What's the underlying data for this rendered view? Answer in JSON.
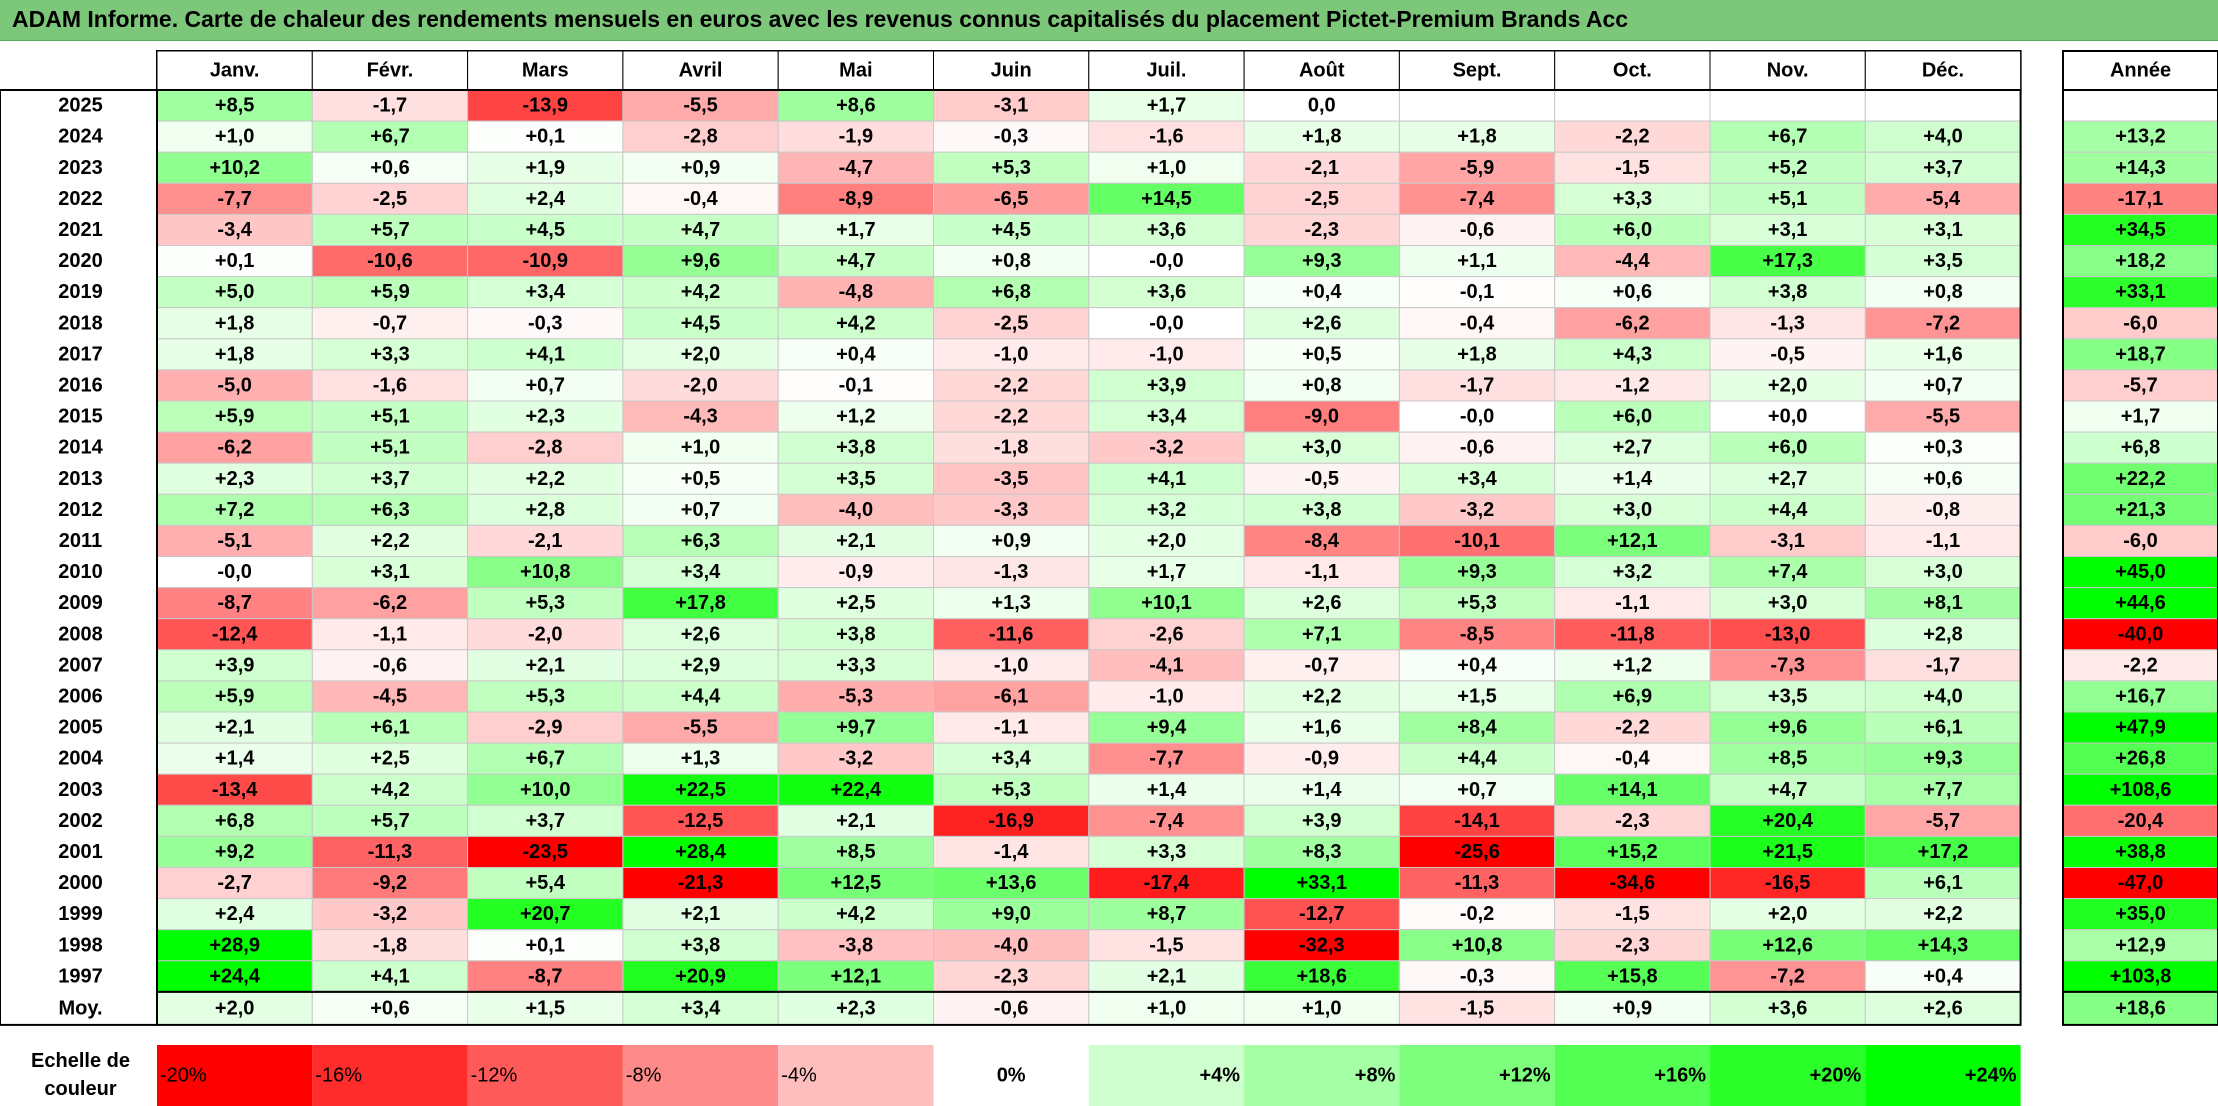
{
  "title": "ADAM Informe. Carte de chaleur des rendements mensuels en euros avec les revenus connus capitalisés du placement Pictet-Premium Brands Acc",
  "chart_data": {
    "type": "heatmap",
    "months": [
      "Janv.",
      "Févr.",
      "Mars",
      "Avril",
      "Mai",
      "Juin",
      "Juil.",
      "Août",
      "Sept.",
      "Oct.",
      "Nov.",
      "Déc."
    ],
    "annual_header": "Année",
    "rows": [
      {
        "year": "2025",
        "values": [
          "+8,5",
          "-1,7",
          "-13,9",
          "-5,5",
          "+8,6",
          "-3,1",
          "+1,7",
          "0,0",
          "",
          "",
          "",
          ""
        ],
        "annual": ""
      },
      {
        "year": "2024",
        "values": [
          "+1,0",
          "+6,7",
          "+0,1",
          "-2,8",
          "-1,9",
          "-0,3",
          "-1,6",
          "+1,8",
          "+1,8",
          "-2,2",
          "+6,7",
          "+4,0"
        ],
        "annual": "+13,2"
      },
      {
        "year": "2023",
        "values": [
          "+10,2",
          "+0,6",
          "+1,9",
          "+0,9",
          "-4,7",
          "+5,3",
          "+1,0",
          "-2,1",
          "-5,9",
          "-1,5",
          "+5,2",
          "+3,7"
        ],
        "annual": "+14,3"
      },
      {
        "year": "2022",
        "values": [
          "-7,7",
          "-2,5",
          "+2,4",
          "-0,4",
          "-8,9",
          "-6,5",
          "+14,5",
          "-2,5",
          "-7,4",
          "+3,3",
          "+5,1",
          "-5,4"
        ],
        "annual": "-17,1"
      },
      {
        "year": "2021",
        "values": [
          "-3,4",
          "+5,7",
          "+4,5",
          "+4,7",
          "+1,7",
          "+4,5",
          "+3,6",
          "-2,3",
          "-0,6",
          "+6,0",
          "+3,1",
          "+3,1"
        ],
        "annual": "+34,5"
      },
      {
        "year": "2020",
        "values": [
          "+0,1",
          "-10,6",
          "-10,9",
          "+9,6",
          "+4,7",
          "+0,8",
          "-0,0",
          "+9,3",
          "+1,1",
          "-4,4",
          "+17,3",
          "+3,5"
        ],
        "annual": "+18,2"
      },
      {
        "year": "2019",
        "values": [
          "+5,0",
          "+5,9",
          "+3,4",
          "+4,2",
          "-4,8",
          "+6,8",
          "+3,6",
          "+0,4",
          "-0,1",
          "+0,6",
          "+3,8",
          "+0,8"
        ],
        "annual": "+33,1"
      },
      {
        "year": "2018",
        "values": [
          "+1,8",
          "-0,7",
          "-0,3",
          "+4,5",
          "+4,2",
          "-2,5",
          "-0,0",
          "+2,6",
          "-0,4",
          "-6,2",
          "-1,3",
          "-7,2"
        ],
        "annual": "-6,0"
      },
      {
        "year": "2017",
        "values": [
          "+1,8",
          "+3,3",
          "+4,1",
          "+2,0",
          "+0,4",
          "-1,0",
          "-1,0",
          "+0,5",
          "+1,8",
          "+4,3",
          "-0,5",
          "+1,6"
        ],
        "annual": "+18,7"
      },
      {
        "year": "2016",
        "values": [
          "-5,0",
          "-1,6",
          "+0,7",
          "-2,0",
          "-0,1",
          "-2,2",
          "+3,9",
          "+0,8",
          "-1,7",
          "-1,2",
          "+2,0",
          "+0,7"
        ],
        "annual": "-5,7"
      },
      {
        "year": "2015",
        "values": [
          "+5,9",
          "+5,1",
          "+2,3",
          "-4,3",
          "+1,2",
          "-2,2",
          "+3,4",
          "-9,0",
          "-0,0",
          "+6,0",
          "+0,0",
          "-5,5"
        ],
        "annual": "+1,7"
      },
      {
        "year": "2014",
        "values": [
          "-6,2",
          "+5,1",
          "-2,8",
          "+1,0",
          "+3,8",
          "-1,8",
          "-3,2",
          "+3,0",
          "-0,6",
          "+2,7",
          "+6,0",
          "+0,3"
        ],
        "annual": "+6,8"
      },
      {
        "year": "2013",
        "values": [
          "+2,3",
          "+3,7",
          "+2,2",
          "+0,5",
          "+3,5",
          "-3,5",
          "+4,1",
          "-0,5",
          "+3,4",
          "+1,4",
          "+2,7",
          "+0,6"
        ],
        "annual": "+22,2"
      },
      {
        "year": "2012",
        "values": [
          "+7,2",
          "+6,3",
          "+2,8",
          "+0,7",
          "-4,0",
          "-3,3",
          "+3,2",
          "+3,8",
          "-3,2",
          "+3,0",
          "+4,4",
          "-0,8"
        ],
        "annual": "+21,3"
      },
      {
        "year": "2011",
        "values": [
          "-5,1",
          "+2,2",
          "-2,1",
          "+6,3",
          "+2,1",
          "+0,9",
          "+2,0",
          "-8,4",
          "-10,1",
          "+12,1",
          "-3,1",
          "-1,1"
        ],
        "annual": "-6,0"
      },
      {
        "year": "2010",
        "values": [
          "-0,0",
          "+3,1",
          "+10,8",
          "+3,4",
          "-0,9",
          "-1,3",
          "+1,7",
          "-1,1",
          "+9,3",
          "+3,2",
          "+7,4",
          "+3,0"
        ],
        "annual": "+45,0"
      },
      {
        "year": "2009",
        "values": [
          "-8,7",
          "-6,2",
          "+5,3",
          "+17,8",
          "+2,5",
          "+1,3",
          "+10,1",
          "+2,6",
          "+5,3",
          "-1,1",
          "+3,0",
          "+8,1"
        ],
        "annual": "+44,6"
      },
      {
        "year": "2008",
        "values": [
          "-12,4",
          "-1,1",
          "-2,0",
          "+2,6",
          "+3,8",
          "-11,6",
          "-2,6",
          "+7,1",
          "-8,5",
          "-11,8",
          "-13,0",
          "+2,8"
        ],
        "annual": "-40,0"
      },
      {
        "year": "2007",
        "values": [
          "+3,9",
          "-0,6",
          "+2,1",
          "+2,9",
          "+3,3",
          "-1,0",
          "-4,1",
          "-0,7",
          "+0,4",
          "+1,2",
          "-7,3",
          "-1,7"
        ],
        "annual": "-2,2"
      },
      {
        "year": "2006",
        "values": [
          "+5,9",
          "-4,5",
          "+5,3",
          "+4,4",
          "-5,3",
          "-6,1",
          "-1,0",
          "+2,2",
          "+1,5",
          "+6,9",
          "+3,5",
          "+4,0"
        ],
        "annual": "+16,7"
      },
      {
        "year": "2005",
        "values": [
          "+2,1",
          "+6,1",
          "-2,9",
          "-5,5",
          "+9,7",
          "-1,1",
          "+9,4",
          "+1,6",
          "+8,4",
          "-2,2",
          "+9,6",
          "+6,1"
        ],
        "annual": "+47,9"
      },
      {
        "year": "2004",
        "values": [
          "+1,4",
          "+2,5",
          "+6,7",
          "+1,3",
          "-3,2",
          "+3,4",
          "-7,7",
          "-0,9",
          "+4,4",
          "-0,4",
          "+8,5",
          "+9,3"
        ],
        "annual": "+26,8"
      },
      {
        "year": "2003",
        "values": [
          "-13,4",
          "+4,2",
          "+10,0",
          "+22,5",
          "+22,4",
          "+5,3",
          "+1,4",
          "+1,4",
          "+0,7",
          "+14,1",
          "+4,7",
          "+7,7"
        ],
        "annual": "+108,6"
      },
      {
        "year": "2002",
        "values": [
          "+6,8",
          "+5,7",
          "+3,7",
          "-12,5",
          "+2,1",
          "-16,9",
          "-7,4",
          "+3,9",
          "-14,1",
          "-2,3",
          "+20,4",
          "-5,7"
        ],
        "annual": "-20,4"
      },
      {
        "year": "2001",
        "values": [
          "+9,2",
          "-11,3",
          "-23,5",
          "+28,4",
          "+8,5",
          "-1,4",
          "+3,3",
          "+8,3",
          "-25,6",
          "+15,2",
          "+21,5",
          "+17,2"
        ],
        "annual": "+38,8"
      },
      {
        "year": "2000",
        "values": [
          "-2,7",
          "-9,2",
          "+5,4",
          "-21,3",
          "+12,5",
          "+13,6",
          "-17,4",
          "+33,1",
          "-11,3",
          "-34,6",
          "-16,5",
          "+6,1"
        ],
        "annual": "-47,0"
      },
      {
        "year": "1999",
        "values": [
          "+2,4",
          "-3,2",
          "+20,7",
          "+2,1",
          "+4,2",
          "+9,0",
          "+8,7",
          "-12,7",
          "-0,2",
          "-1,5",
          "+2,0",
          "+2,2"
        ],
        "annual": "+35,0"
      },
      {
        "year": "1998",
        "values": [
          "+28,9",
          "-1,8",
          "+0,1",
          "+3,8",
          "-3,8",
          "-4,0",
          "-1,5",
          "-32,3",
          "+10,8",
          "-2,3",
          "+12,6",
          "+14,3"
        ],
        "annual": "+12,9"
      },
      {
        "year": "1997",
        "values": [
          "+24,4",
          "+4,1",
          "-8,7",
          "+20,9",
          "+12,1",
          "-2,3",
          "+2,1",
          "+18,6",
          "-0,3",
          "+15,8",
          "-7,2",
          "+0,4"
        ],
        "annual": "+103,8"
      }
    ],
    "average": {
      "label": "Moy.",
      "values": [
        "+2,0",
        "+0,6",
        "+1,5",
        "+3,4",
        "+2,3",
        "-0,6",
        "+1,0",
        "+1,0",
        "-1,5",
        "+0,9",
        "+3,6",
        "+2,6"
      ],
      "annual": "+18,6"
    },
    "color_scale": {
      "label_line1": "Echelle de",
      "label_line2": "couleur",
      "steps": [
        {
          "label": "-20%",
          "value": -20
        },
        {
          "label": "-16%",
          "value": -16
        },
        {
          "label": "-12%",
          "value": -12
        },
        {
          "label": "-8%",
          "value": -8
        },
        {
          "label": "-4%",
          "value": -4
        },
        {
          "label": "0%",
          "value": 0
        },
        {
          "label": "+4%",
          "value": 4
        },
        {
          "label": "+8%",
          "value": 8
        },
        {
          "label": "+12%",
          "value": 12
        },
        {
          "label": "+16%",
          "value": 16
        },
        {
          "label": "+20%",
          "value": 20
        },
        {
          "label": "+24%",
          "value": 24
        }
      ]
    },
    "colors": {
      "negative": "#ff0000",
      "neutral": "#ffffff",
      "positive": "#00ff00"
    }
  }
}
